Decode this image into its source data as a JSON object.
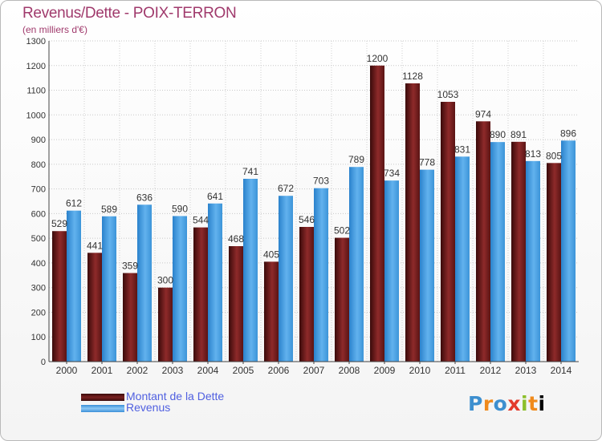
{
  "chart_data": {
    "type": "bar",
    "title": "Revenus/Dette - POIX-TERRON",
    "subtitle": "(en milliers d'€)",
    "categories": [
      "2000",
      "2001",
      "2002",
      "2003",
      "2004",
      "2005",
      "2006",
      "2007",
      "2008",
      "2009",
      "2010",
      "2011",
      "2012",
      "2013",
      "2014"
    ],
    "series": [
      {
        "name": "Montant de la Dette",
        "values": [
          529,
          441,
          359,
          300,
          544,
          468,
          405,
          546,
          502,
          1200,
          1128,
          1053,
          974,
          891,
          805
        ]
      },
      {
        "name": "Revenus",
        "values": [
          612,
          589,
          636,
          590,
          641,
          741,
          672,
          703,
          789,
          734,
          778,
          831,
          890,
          813,
          896
        ]
      }
    ],
    "ylim": [
      0,
      1300
    ],
    "yticks": [
      0,
      100,
      200,
      300,
      400,
      500,
      600,
      700,
      800,
      900,
      1000,
      1100,
      1200,
      1300
    ],
    "grid": true,
    "xlabel": "",
    "ylabel": "",
    "legend_position": "bottom-left"
  },
  "colors": {
    "dette_dark": "#3a0a0a",
    "dette_light": "#8e2a2a",
    "revenus_dark": "#2a82cc",
    "revenus_light": "#62b2ee",
    "title": "#a03a6c",
    "legend_text": "#5060e0"
  },
  "brand": {
    "letters": [
      "P",
      "r",
      "o",
      "x",
      "i",
      "t",
      "i"
    ]
  }
}
